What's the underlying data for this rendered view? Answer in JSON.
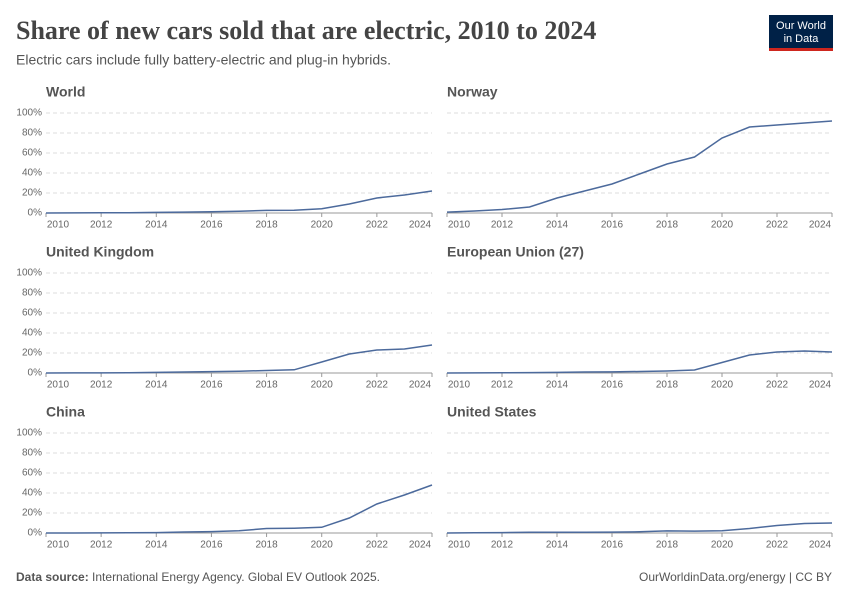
{
  "title": "Share of new cars sold that are electric, 2010 to 2024",
  "subtitle": "Electric cars include fully battery-electric and plug-in hybrids.",
  "logo": [
    "Our World",
    "in Data"
  ],
  "source_label": "Data source:",
  "source": "International Energy Agency. Global EV Outlook 2025.",
  "credit": "OurWorldinData.org/energy | CC BY",
  "chart_data": [
    {
      "type": "line",
      "title": "World",
      "color": "#4c6a9c",
      "grid": true,
      "x": [
        2010,
        2011,
        2012,
        2013,
        2014,
        2015,
        2016,
        2017,
        2018,
        2019,
        2020,
        2021,
        2022,
        2023,
        2024
      ],
      "values": [
        0,
        0.1,
        0.2,
        0.3,
        0.6,
        0.9,
        1.2,
        1.8,
        2.6,
        2.7,
        4.2,
        9,
        15,
        18,
        22
      ],
      "xlim": [
        2010,
        2024
      ],
      "xticks": [
        2010,
        2012,
        2014,
        2016,
        2018,
        2020,
        2022,
        2024
      ],
      "ylim": [
        0,
        100
      ],
      "yticks": [
        {
          "value": 0,
          "label": "0%"
        },
        {
          "value": 20,
          "label": "20%"
        },
        {
          "value": 40,
          "label": "40%"
        },
        {
          "value": 60,
          "label": "60%"
        },
        {
          "value": 80,
          "label": "80%"
        },
        {
          "value": 100,
          "label": "100%"
        }
      ]
    },
    {
      "type": "line",
      "title": "Norway",
      "color": "#4c6a9c",
      "grid": true,
      "x": [
        2010,
        2011,
        2012,
        2013,
        2014,
        2015,
        2016,
        2017,
        2018,
        2019,
        2020,
        2021,
        2022,
        2023,
        2024
      ],
      "values": [
        0.9,
        2,
        3.5,
        6,
        15,
        22,
        29,
        39,
        49,
        56,
        75,
        86,
        88,
        90,
        92
      ],
      "xlim": [
        2010,
        2024
      ],
      "xticks": [
        2010,
        2012,
        2014,
        2016,
        2018,
        2020,
        2022,
        2024
      ],
      "ylim": [
        0,
        100
      ],
      "yticks": [
        0,
        20,
        40,
        60,
        80,
        100
      ]
    },
    {
      "type": "line",
      "title": "United Kingdom",
      "color": "#4c6a9c",
      "grid": true,
      "x": [
        2010,
        2011,
        2012,
        2013,
        2014,
        2015,
        2016,
        2017,
        2018,
        2019,
        2020,
        2021,
        2022,
        2023,
        2024
      ],
      "values": [
        0,
        0.1,
        0.1,
        0.2,
        0.6,
        1,
        1.4,
        1.8,
        2.5,
        3.2,
        11,
        19,
        23,
        24,
        28
      ],
      "xlim": [
        2010,
        2024
      ],
      "xticks": [
        2010,
        2012,
        2014,
        2016,
        2018,
        2020,
        2022,
        2024
      ],
      "ylim": [
        0,
        100
      ],
      "yticks": [
        {
          "value": 0,
          "label": "0%"
        },
        {
          "value": 20,
          "label": "20%"
        },
        {
          "value": 40,
          "label": "40%"
        },
        {
          "value": 60,
          "label": "60%"
        },
        {
          "value": 80,
          "label": "80%"
        },
        {
          "value": 100,
          "label": "100%"
        }
      ]
    },
    {
      "type": "line",
      "title": "European Union (27)",
      "color": "#4c6a9c",
      "grid": true,
      "x": [
        2010,
        2011,
        2012,
        2013,
        2014,
        2015,
        2016,
        2017,
        2018,
        2019,
        2020,
        2021,
        2022,
        2023,
        2024
      ],
      "values": [
        0,
        0.1,
        0.2,
        0.4,
        0.6,
        1,
        1.1,
        1.5,
        2,
        3,
        10.5,
        18,
        21,
        22,
        21
      ],
      "xlim": [
        2010,
        2024
      ],
      "xticks": [
        2010,
        2012,
        2014,
        2016,
        2018,
        2020,
        2022,
        2024
      ],
      "ylim": [
        0,
        100
      ],
      "yticks": [
        0,
        20,
        40,
        60,
        80,
        100
      ]
    },
    {
      "type": "line",
      "title": "China",
      "color": "#4c6a9c",
      "grid": true,
      "x": [
        2010,
        2011,
        2012,
        2013,
        2014,
        2015,
        2016,
        2017,
        2018,
        2019,
        2020,
        2021,
        2022,
        2023,
        2024
      ],
      "values": [
        0,
        0,
        0.1,
        0.2,
        0.4,
        1,
        1.4,
        2.2,
        4.5,
        4.8,
        5.7,
        15,
        29,
        38,
        48
      ],
      "xlim": [
        2010,
        2024
      ],
      "xticks": [
        2010,
        2012,
        2014,
        2016,
        2018,
        2020,
        2022,
        2024
      ],
      "ylim": [
        0,
        100
      ],
      "yticks": [
        {
          "value": 0,
          "label": "0%"
        },
        {
          "value": 20,
          "label": "20%"
        },
        {
          "value": 40,
          "label": "40%"
        },
        {
          "value": 60,
          "label": "60%"
        },
        {
          "value": 80,
          "label": "80%"
        },
        {
          "value": 100,
          "label": "100%"
        }
      ]
    },
    {
      "type": "line",
      "title": "United States",
      "color": "#4c6a9c",
      "grid": true,
      "x": [
        2010,
        2011,
        2012,
        2013,
        2014,
        2015,
        2016,
        2017,
        2018,
        2019,
        2020,
        2021,
        2022,
        2023,
        2024
      ],
      "values": [
        0,
        0.2,
        0.4,
        0.7,
        0.7,
        0.7,
        0.9,
        1.2,
        2.1,
        1.9,
        2.3,
        4.5,
        7.5,
        9.5,
        10
      ],
      "xlim": [
        2010,
        2024
      ],
      "xticks": [
        2010,
        2012,
        2014,
        2016,
        2018,
        2020,
        2022,
        2024
      ],
      "ylim": [
        0,
        100
      ],
      "yticks": [
        0,
        20,
        40,
        60,
        80,
        100
      ]
    }
  ]
}
